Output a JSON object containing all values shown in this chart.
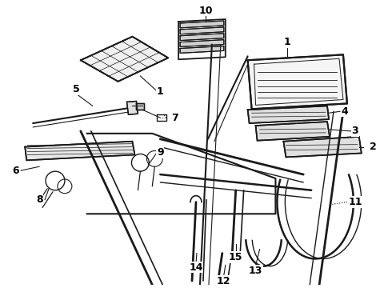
{
  "background_color": "#ffffff",
  "line_color": "#1a1a1a",
  "figsize": [
    4.9,
    3.6
  ],
  "dpi": 100,
  "label_fontsize": 9,
  "label_fontweight": "bold"
}
